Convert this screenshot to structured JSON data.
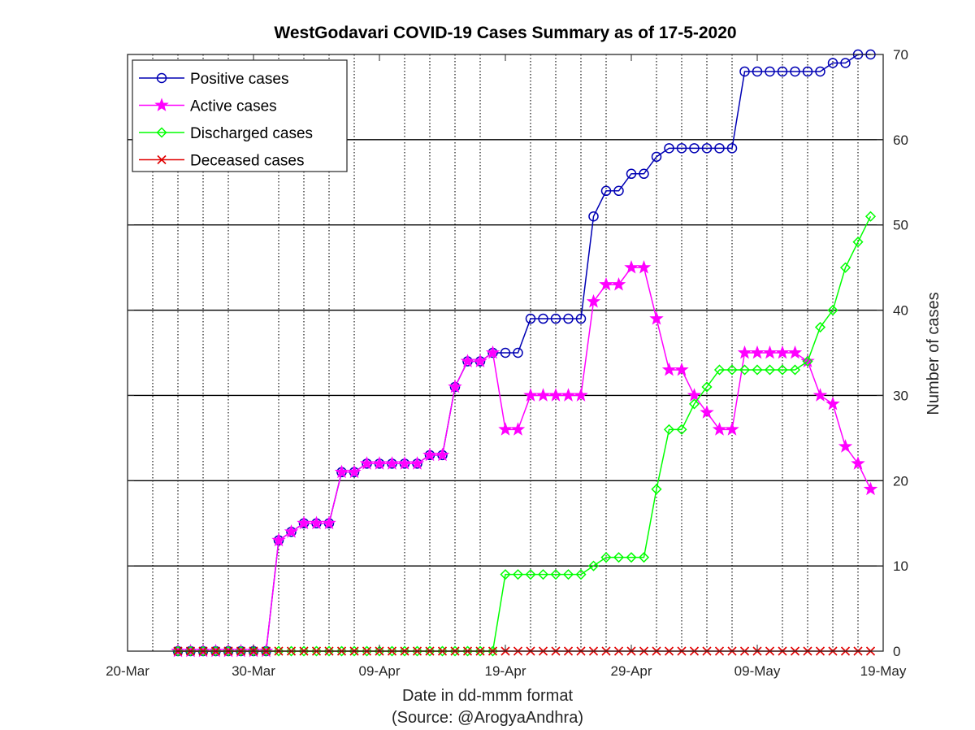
{
  "chart_data": {
    "type": "line",
    "title": "WestGodavari COVID-19 Cases Summary as of 17-5-2020",
    "xlabel": "Date in dd-mmm format",
    "source_note": "(Source: @ArogyaAndhra)",
    "ylabel": "Number of cases",
    "y_axis_side": "right",
    "xlim": [
      "2020-03-20",
      "2020-05-19"
    ],
    "ylim": [
      0,
      70
    ],
    "x_ticks": [
      "20-Mar",
      "30-Mar",
      "09-Apr",
      "19-Apr",
      "29-Apr",
      "09-May",
      "19-May"
    ],
    "y_ticks": [
      "0",
      "10",
      "20",
      "30",
      "40",
      "50",
      "60",
      "70"
    ],
    "grid": {
      "x_minor_dotted": true,
      "y_major_solid": true
    },
    "legend_position": "top-left",
    "x": [
      "2020-03-24",
      "2020-03-25",
      "2020-03-26",
      "2020-03-27",
      "2020-03-28",
      "2020-03-29",
      "2020-03-30",
      "2020-03-31",
      "2020-04-01",
      "2020-04-02",
      "2020-04-03",
      "2020-04-04",
      "2020-04-05",
      "2020-04-06",
      "2020-04-07",
      "2020-04-08",
      "2020-04-09",
      "2020-04-10",
      "2020-04-11",
      "2020-04-12",
      "2020-04-13",
      "2020-04-14",
      "2020-04-15",
      "2020-04-16",
      "2020-04-17",
      "2020-04-18",
      "2020-04-19",
      "2020-04-20",
      "2020-04-21",
      "2020-04-22",
      "2020-04-23",
      "2020-04-24",
      "2020-04-25",
      "2020-04-26",
      "2020-04-27",
      "2020-04-28",
      "2020-04-29",
      "2020-04-30",
      "2020-05-01",
      "2020-05-02",
      "2020-05-03",
      "2020-05-04",
      "2020-05-05",
      "2020-05-06",
      "2020-05-07",
      "2020-05-08",
      "2020-05-09",
      "2020-05-10",
      "2020-05-11",
      "2020-05-12",
      "2020-05-13",
      "2020-05-14",
      "2020-05-15",
      "2020-05-16",
      "2020-05-17",
      "2020-05-18"
    ],
    "series": [
      {
        "name": "Positive cases",
        "color": "#0000b4",
        "marker": "circle",
        "values": [
          0,
          0,
          0,
          0,
          0,
          0,
          0,
          0,
          13,
          14,
          15,
          15,
          15,
          21,
          21,
          22,
          22,
          22,
          22,
          22,
          23,
          23,
          31,
          34,
          34,
          35,
          35,
          35,
          39,
          39,
          39,
          39,
          39,
          51,
          54,
          54,
          56,
          56,
          58,
          59,
          59,
          59,
          59,
          59,
          59,
          68,
          68,
          68,
          68,
          68,
          68,
          68,
          69,
          69,
          70,
          70
        ]
      },
      {
        "name": "Active cases",
        "color": "#ff00ff",
        "marker": "star",
        "values": [
          0,
          0,
          0,
          0,
          0,
          0,
          0,
          0,
          13,
          14,
          15,
          15,
          15,
          21,
          21,
          22,
          22,
          22,
          22,
          22,
          23,
          23,
          31,
          34,
          34,
          35,
          26,
          26,
          30,
          30,
          30,
          30,
          30,
          41,
          43,
          43,
          45,
          45,
          39,
          33,
          33,
          30,
          28,
          26,
          26,
          35,
          35,
          35,
          35,
          35,
          34,
          30,
          29,
          24,
          22,
          19
        ]
      },
      {
        "name": "Discharged cases",
        "color": "#00ff00",
        "marker": "diamond",
        "values": [
          0,
          0,
          0,
          0,
          0,
          0,
          0,
          0,
          0,
          0,
          0,
          0,
          0,
          0,
          0,
          0,
          0,
          0,
          0,
          0,
          0,
          0,
          0,
          0,
          0,
          0,
          9,
          9,
          9,
          9,
          9,
          9,
          9,
          10,
          11,
          11,
          11,
          11,
          19,
          26,
          26,
          29,
          31,
          33,
          33,
          33,
          33,
          33,
          33,
          33,
          34,
          38,
          40,
          45,
          48,
          51
        ]
      },
      {
        "name": "Deceased cases",
        "color": "#e00000",
        "marker": "x",
        "values": [
          0,
          0,
          0,
          0,
          0,
          0,
          0,
          0,
          0,
          0,
          0,
          0,
          0,
          0,
          0,
          0,
          0,
          0,
          0,
          0,
          0,
          0,
          0,
          0,
          0,
          0,
          0,
          0,
          0,
          0,
          0,
          0,
          0,
          0,
          0,
          0,
          0,
          0,
          0,
          0,
          0,
          0,
          0,
          0,
          0,
          0,
          0,
          0,
          0,
          0,
          0,
          0,
          0,
          0,
          0,
          0
        ]
      }
    ]
  }
}
